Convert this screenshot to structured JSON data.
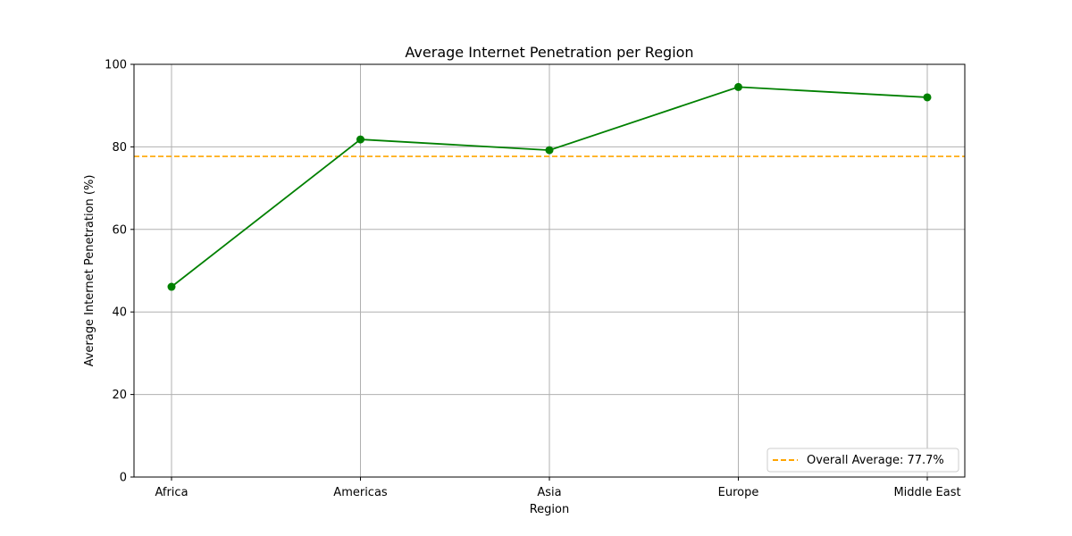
{
  "chart_data": {
    "type": "line",
    "title": "Average Internet Penetration per Region",
    "xlabel": "Region",
    "ylabel": "Average Internet Penetration (%)",
    "categories": [
      "Africa",
      "Americas",
      "Asia",
      "Europe",
      "Middle East"
    ],
    "series": [
      {
        "values": [
          46.1,
          81.8,
          79.2,
          94.5,
          92.0
        ],
        "color": "#008000",
        "marker": "circle"
      }
    ],
    "reference_line": {
      "value": 77.7,
      "label": "Overall Average: 77.7%",
      "color": "#ffa500",
      "style": "dashed"
    },
    "ylim": [
      0,
      100
    ],
    "yticks": [
      0,
      20,
      40,
      60,
      80,
      100
    ],
    "grid": true,
    "legend_position": "lower-right"
  }
}
